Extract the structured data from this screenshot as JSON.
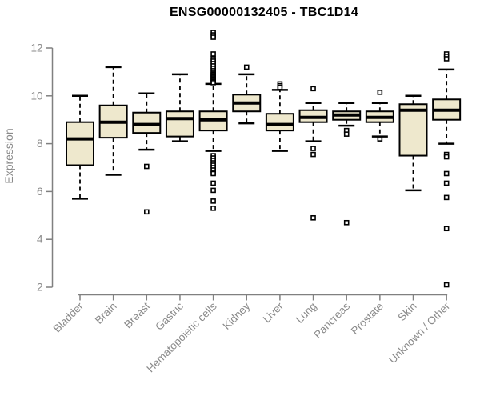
{
  "chart_data": {
    "type": "box",
    "title": "ENSG00000132405 - TBC1D14",
    "ylabel": "Expression",
    "xlabel": "",
    "ylim": [
      2,
      12
    ],
    "yticks": [
      2,
      4,
      6,
      8,
      10,
      12
    ],
    "grid": false,
    "legend_position": "none",
    "categories": [
      "Bladder",
      "Brain",
      "Breast",
      "Gastric",
      "Hematopoietic cells",
      "Kidney",
      "Liver",
      "Lung",
      "Pancreas",
      "Prostate",
      "Skin",
      "Unknown / Other"
    ],
    "boxes": [
      {
        "label": "Bladder",
        "whisker_low": 5.7,
        "q1": 7.1,
        "median": 8.2,
        "q3": 8.9,
        "whisker_high": 10.0,
        "outliers": []
      },
      {
        "label": "Brain",
        "whisker_low": 6.7,
        "q1": 8.25,
        "median": 8.9,
        "q3": 9.6,
        "whisker_high": 11.2,
        "outliers": []
      },
      {
        "label": "Breast",
        "whisker_low": 7.75,
        "q1": 8.45,
        "median": 8.8,
        "q3": 9.3,
        "whisker_high": 10.1,
        "outliers": [
          7.05,
          5.15
        ]
      },
      {
        "label": "Gastric",
        "whisker_low": 8.1,
        "q1": 8.3,
        "median": 9.05,
        "q3": 9.35,
        "whisker_high": 10.9,
        "outliers": []
      },
      {
        "label": "Hematopoietic cells",
        "whisker_low": 7.7,
        "q1": 8.55,
        "median": 9.0,
        "q3": 9.35,
        "whisker_high": 10.5,
        "outliers": [
          12.65,
          12.55,
          12.45,
          11.75,
          11.55,
          11.45,
          11.35,
          11.25,
          11.15,
          11.05,
          10.95,
          10.9,
          10.85,
          10.8,
          10.75,
          10.7,
          10.65,
          10.6,
          10.55,
          7.5,
          7.4,
          7.3,
          7.2,
          7.1,
          7.0,
          6.9,
          6.8,
          6.75,
          6.35,
          6.05,
          5.6,
          5.3
        ]
      },
      {
        "label": "Kidney",
        "whisker_low": 8.85,
        "q1": 9.35,
        "median": 9.7,
        "q3": 10.05,
        "whisker_high": 10.9,
        "outliers": [
          11.2
        ]
      },
      {
        "label": "Liver",
        "whisker_low": 7.7,
        "q1": 8.55,
        "median": 8.8,
        "q3": 9.25,
        "whisker_high": 10.25,
        "outliers": [
          10.5,
          10.42,
          10.35
        ]
      },
      {
        "label": "Lung",
        "whisker_low": 8.1,
        "q1": 8.9,
        "median": 9.1,
        "q3": 9.4,
        "whisker_high": 9.7,
        "outliers": [
          10.3,
          7.8,
          7.55,
          4.9
        ]
      },
      {
        "label": "Pancreas",
        "whisker_low": 8.75,
        "q1": 9.0,
        "median": 9.2,
        "q3": 9.35,
        "whisker_high": 9.7,
        "outliers": [
          8.55,
          8.4,
          4.7
        ]
      },
      {
        "label": "Prostate",
        "whisker_low": 8.3,
        "q1": 8.9,
        "median": 9.1,
        "q3": 9.35,
        "whisker_high": 9.7,
        "outliers": [
          10.15,
          8.2
        ]
      },
      {
        "label": "Skin",
        "whisker_low": 6.05,
        "q1": 7.5,
        "median": 9.4,
        "q3": 9.65,
        "whisker_high": 10.0,
        "outliers": []
      },
      {
        "label": "Unknown / Other",
        "whisker_low": 8.0,
        "q1": 9.0,
        "median": 9.4,
        "q3": 9.85,
        "whisker_high": 11.1,
        "outliers": [
          11.75,
          11.65,
          11.55,
          7.55,
          7.45,
          6.75,
          6.35,
          5.75,
          4.45,
          2.1
        ]
      }
    ],
    "colors": {
      "box_fill": "#EEE8CD",
      "box_stroke": "#000000",
      "median": "#000000",
      "whisker": "#000000",
      "outlier_stroke": "#000000",
      "outlier_fill": "#ffffff",
      "axis": "#808080",
      "tick_label": "#8a8a8a",
      "title": "#000000"
    }
  }
}
